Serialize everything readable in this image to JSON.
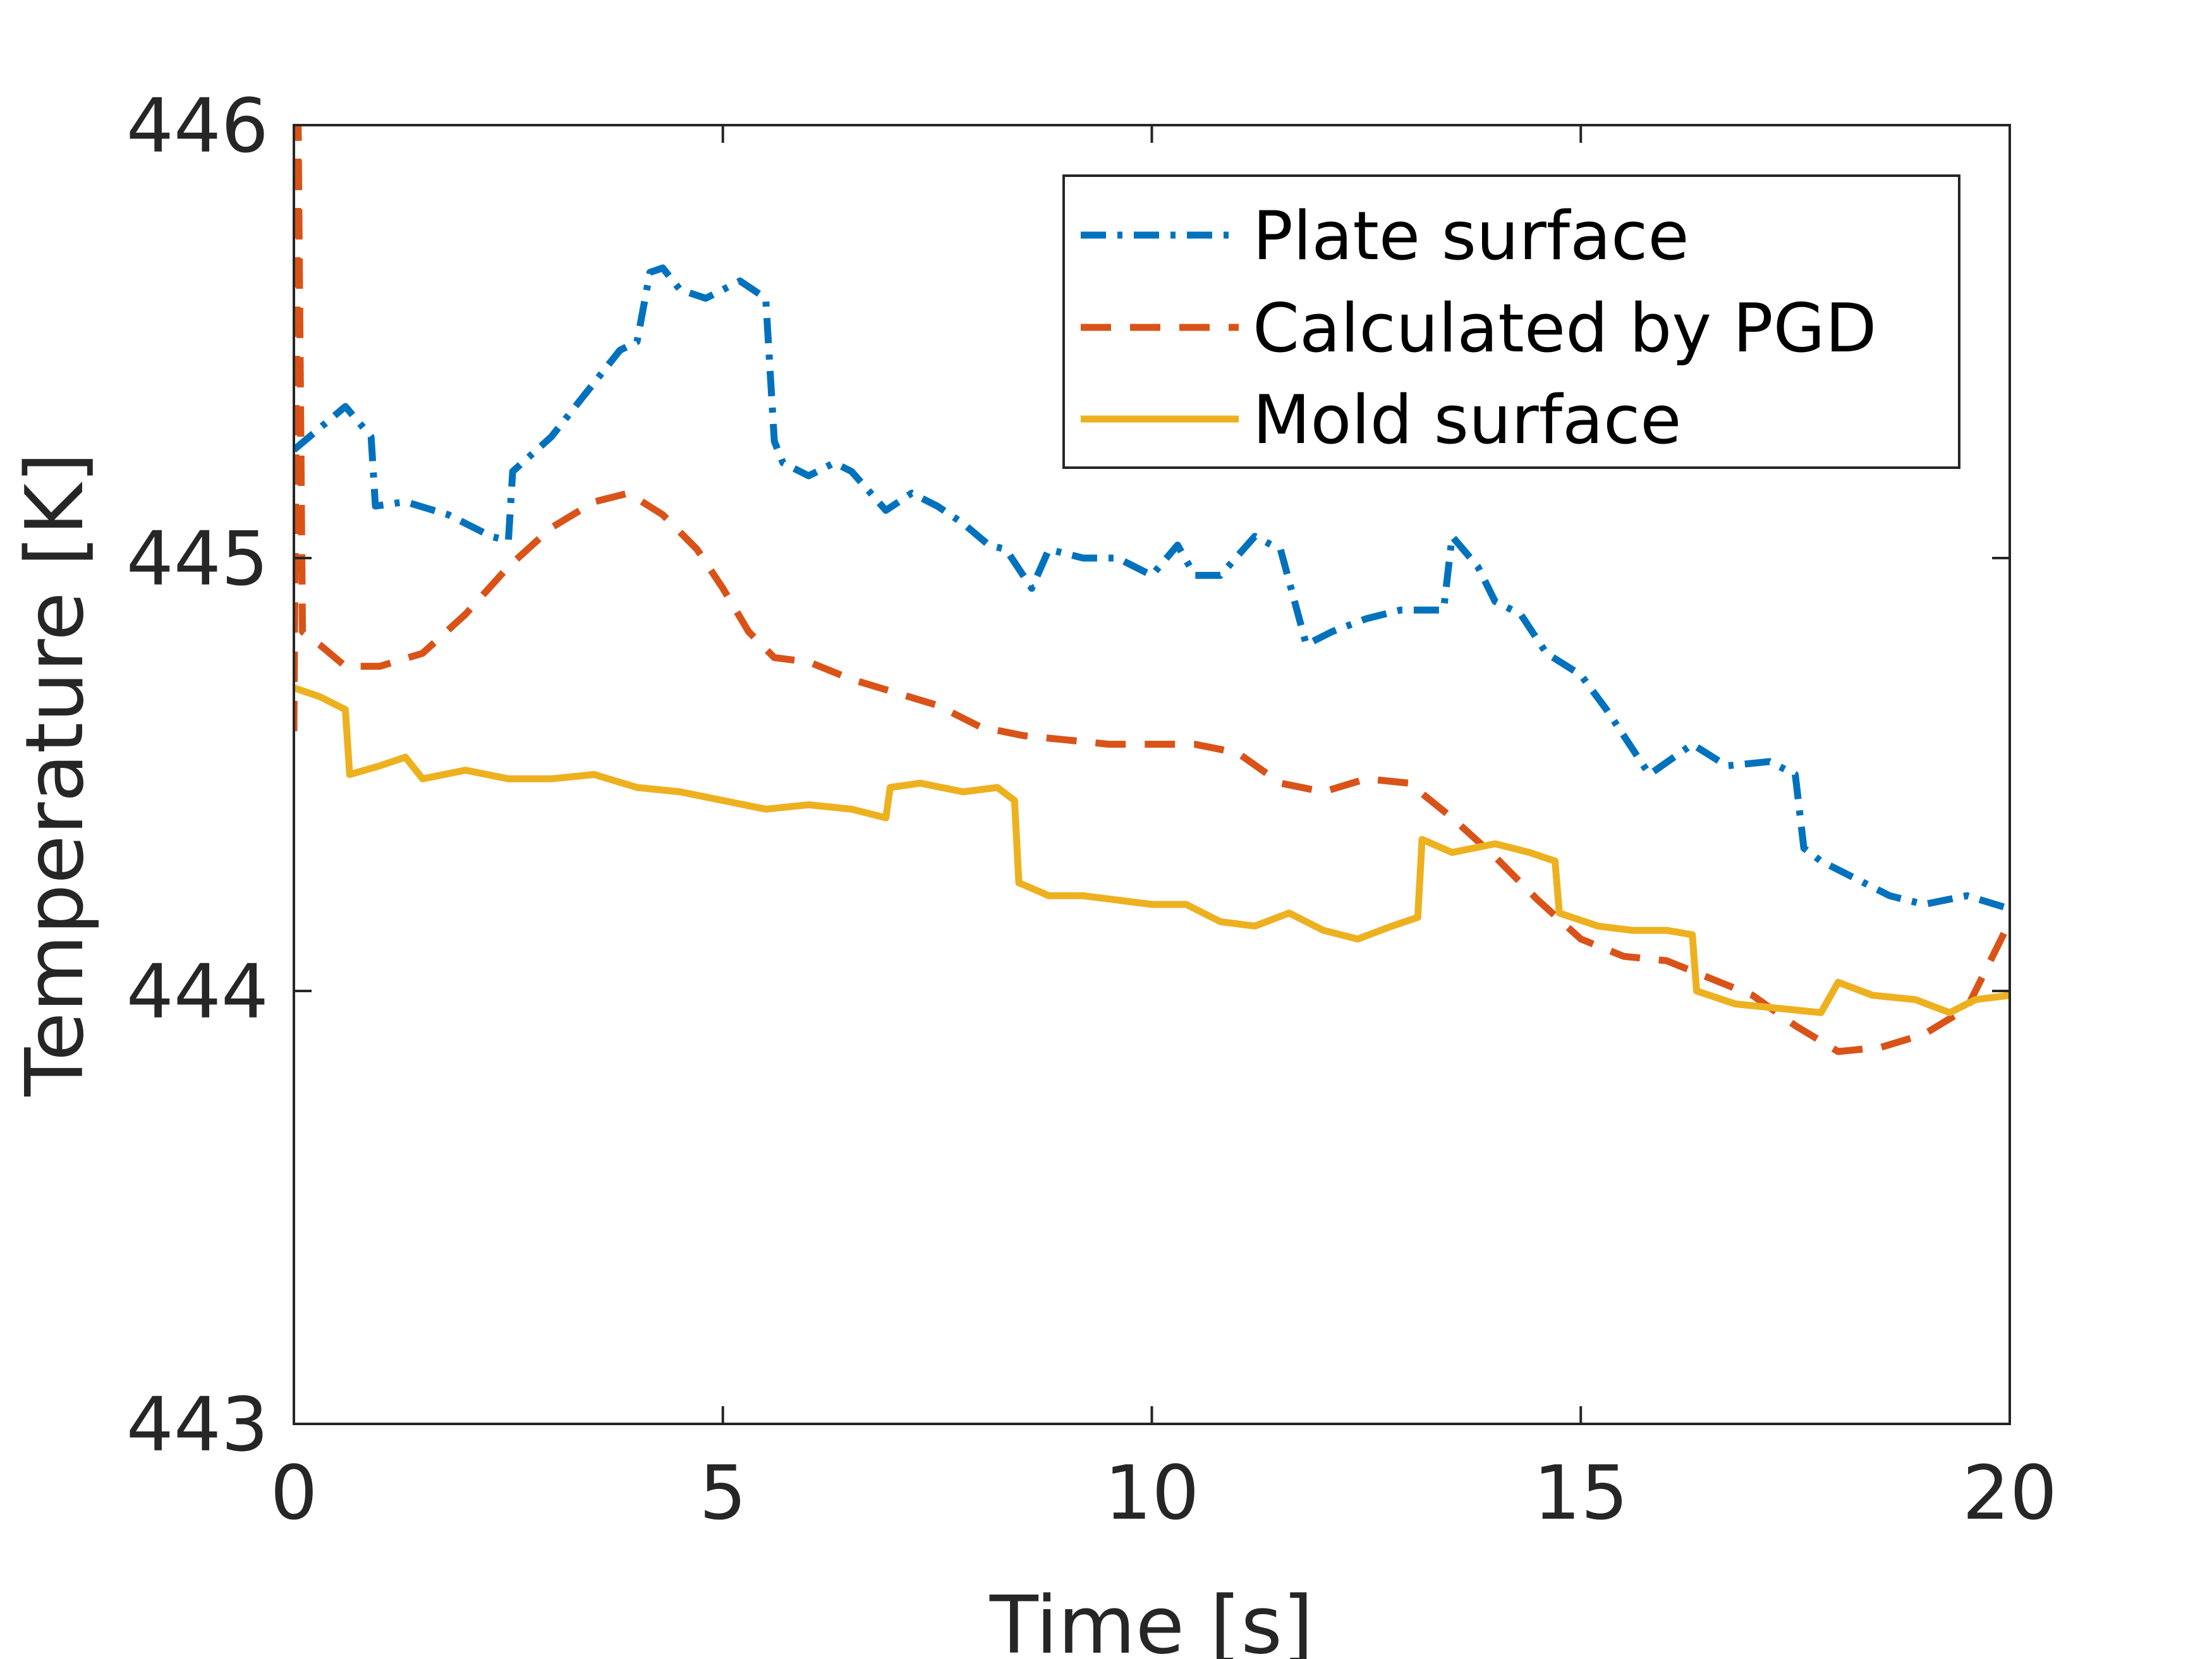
{
  "chart_data": {
    "type": "line",
    "title": "",
    "xlabel": "Time [s]",
    "ylabel": "Temperature [K]",
    "xlim": [
      0,
      20
    ],
    "ylim": [
      443,
      446
    ],
    "xticks": [
      "0",
      "5",
      "10",
      "15",
      "20"
    ],
    "yticks": [
      "443",
      "444",
      "445",
      "446"
    ],
    "grid": false,
    "legend_position": "top-right",
    "series": [
      {
        "name": "Plate surface",
        "color": "#0072BD",
        "style": "dash-dot",
        "x": [
          0,
          0.3,
          0.6,
          0.9,
          0.95,
          1.3,
          1.8,
          2.3,
          2.5,
          2.55,
          3.0,
          3.4,
          3.8,
          4.0,
          4.15,
          4.3,
          4.5,
          4.8,
          5.0,
          5.2,
          5.5,
          5.6,
          5.7,
          6.0,
          6.3,
          6.5,
          6.9,
          7.2,
          7.5,
          7.8,
          8.1,
          8.3,
          8.5,
          8.6,
          8.8,
          9.2,
          9.6,
          10.0,
          10.3,
          10.5,
          10.8,
          11.2,
          11.5,
          11.8,
          12.1,
          12.5,
          12.9,
          13.2,
          13.4,
          13.5,
          13.8,
          14.0,
          14.3,
          14.6,
          15.0,
          15.3,
          15.8,
          16.3,
          16.7,
          17.2,
          17.5,
          17.6,
          17.8,
          18.2,
          18.6,
          19.0,
          19.5,
          20.0
        ],
        "y": [
          445.25,
          445.3,
          445.35,
          445.28,
          445.12,
          445.13,
          445.1,
          445.05,
          445.04,
          445.2,
          445.28,
          445.38,
          445.48,
          445.5,
          445.66,
          445.67,
          445.62,
          445.6,
          445.62,
          445.64,
          445.6,
          445.27,
          445.22,
          445.19,
          445.22,
          445.2,
          445.11,
          445.15,
          445.12,
          445.08,
          445.03,
          445.02,
          444.96,
          444.93,
          445.02,
          445.0,
          445.0,
          444.96,
          445.03,
          444.96,
          444.96,
          445.05,
          445.02,
          444.8,
          444.83,
          444.86,
          444.88,
          444.88,
          444.88,
          445.05,
          444.98,
          444.9,
          444.87,
          444.78,
          444.73,
          444.65,
          444.5,
          444.57,
          444.52,
          444.53,
          444.5,
          444.33,
          444.3,
          444.26,
          444.22,
          444.2,
          444.22,
          444.19
        ]
      },
      {
        "name": "Calculated by PGD",
        "color": "#D95319",
        "style": "dashed",
        "x": [
          0,
          0.05,
          0.1,
          0.3,
          0.6,
          1.0,
          1.5,
          2.0,
          2.5,
          3.0,
          3.5,
          3.9,
          4.3,
          4.7,
          5.0,
          5.3,
          5.6,
          6.0,
          6.5,
          7.0,
          7.5,
          8.0,
          8.5,
          9.0,
          9.5,
          10.0,
          10.5,
          11.0,
          11.5,
          12.0,
          12.5,
          13.0,
          13.5,
          14.0,
          14.5,
          15.0,
          15.5,
          16.0,
          16.5,
          17.0,
          17.5,
          18.0,
          18.5,
          19.0,
          19.5,
          20.0
        ],
        "y": [
          444.6,
          446.0,
          444.83,
          444.8,
          444.75,
          444.75,
          444.78,
          444.87,
          444.98,
          445.07,
          445.13,
          445.15,
          445.1,
          445.02,
          444.93,
          444.83,
          444.77,
          444.76,
          444.72,
          444.69,
          444.66,
          444.61,
          444.59,
          444.58,
          444.57,
          444.57,
          444.57,
          444.55,
          444.48,
          444.46,
          444.49,
          444.48,
          444.4,
          444.31,
          444.21,
          444.12,
          444.08,
          444.07,
          444.03,
          443.99,
          443.92,
          443.86,
          443.87,
          443.9,
          443.96,
          444.16
        ]
      },
      {
        "name": "Mold surface",
        "color": "#EDB120",
        "style": "solid",
        "x": [
          0,
          0.3,
          0.6,
          0.65,
          1.0,
          1.3,
          1.5,
          2.0,
          2.5,
          3.0,
          3.5,
          4.0,
          4.5,
          5.0,
          5.5,
          6.0,
          6.5,
          6.9,
          6.95,
          7.3,
          7.8,
          8.2,
          8.4,
          8.45,
          8.8,
          9.2,
          9.6,
          10.0,
          10.4,
          10.8,
          11.2,
          11.6,
          12.0,
          12.4,
          12.8,
          13.1,
          13.15,
          13.5,
          14.0,
          14.4,
          14.7,
          14.75,
          15.2,
          15.6,
          16.0,
          16.3,
          16.35,
          16.8,
          17.3,
          17.8,
          18.0,
          18.4,
          18.9,
          19.3,
          19.6,
          20.0
        ],
        "y": [
          444.7,
          444.68,
          444.65,
          444.5,
          444.52,
          444.54,
          444.49,
          444.51,
          444.49,
          444.49,
          444.5,
          444.47,
          444.46,
          444.44,
          444.42,
          444.43,
          444.42,
          444.4,
          444.47,
          444.48,
          444.46,
          444.47,
          444.44,
          444.25,
          444.22,
          444.22,
          444.21,
          444.2,
          444.2,
          444.16,
          444.15,
          444.18,
          444.14,
          444.12,
          444.15,
          444.17,
          444.35,
          444.32,
          444.34,
          444.32,
          444.3,
          444.18,
          444.15,
          444.14,
          444.14,
          444.13,
          444.0,
          443.97,
          443.96,
          443.95,
          444.02,
          443.99,
          443.98,
          443.95,
          443.98,
          443.99
        ]
      }
    ]
  }
}
